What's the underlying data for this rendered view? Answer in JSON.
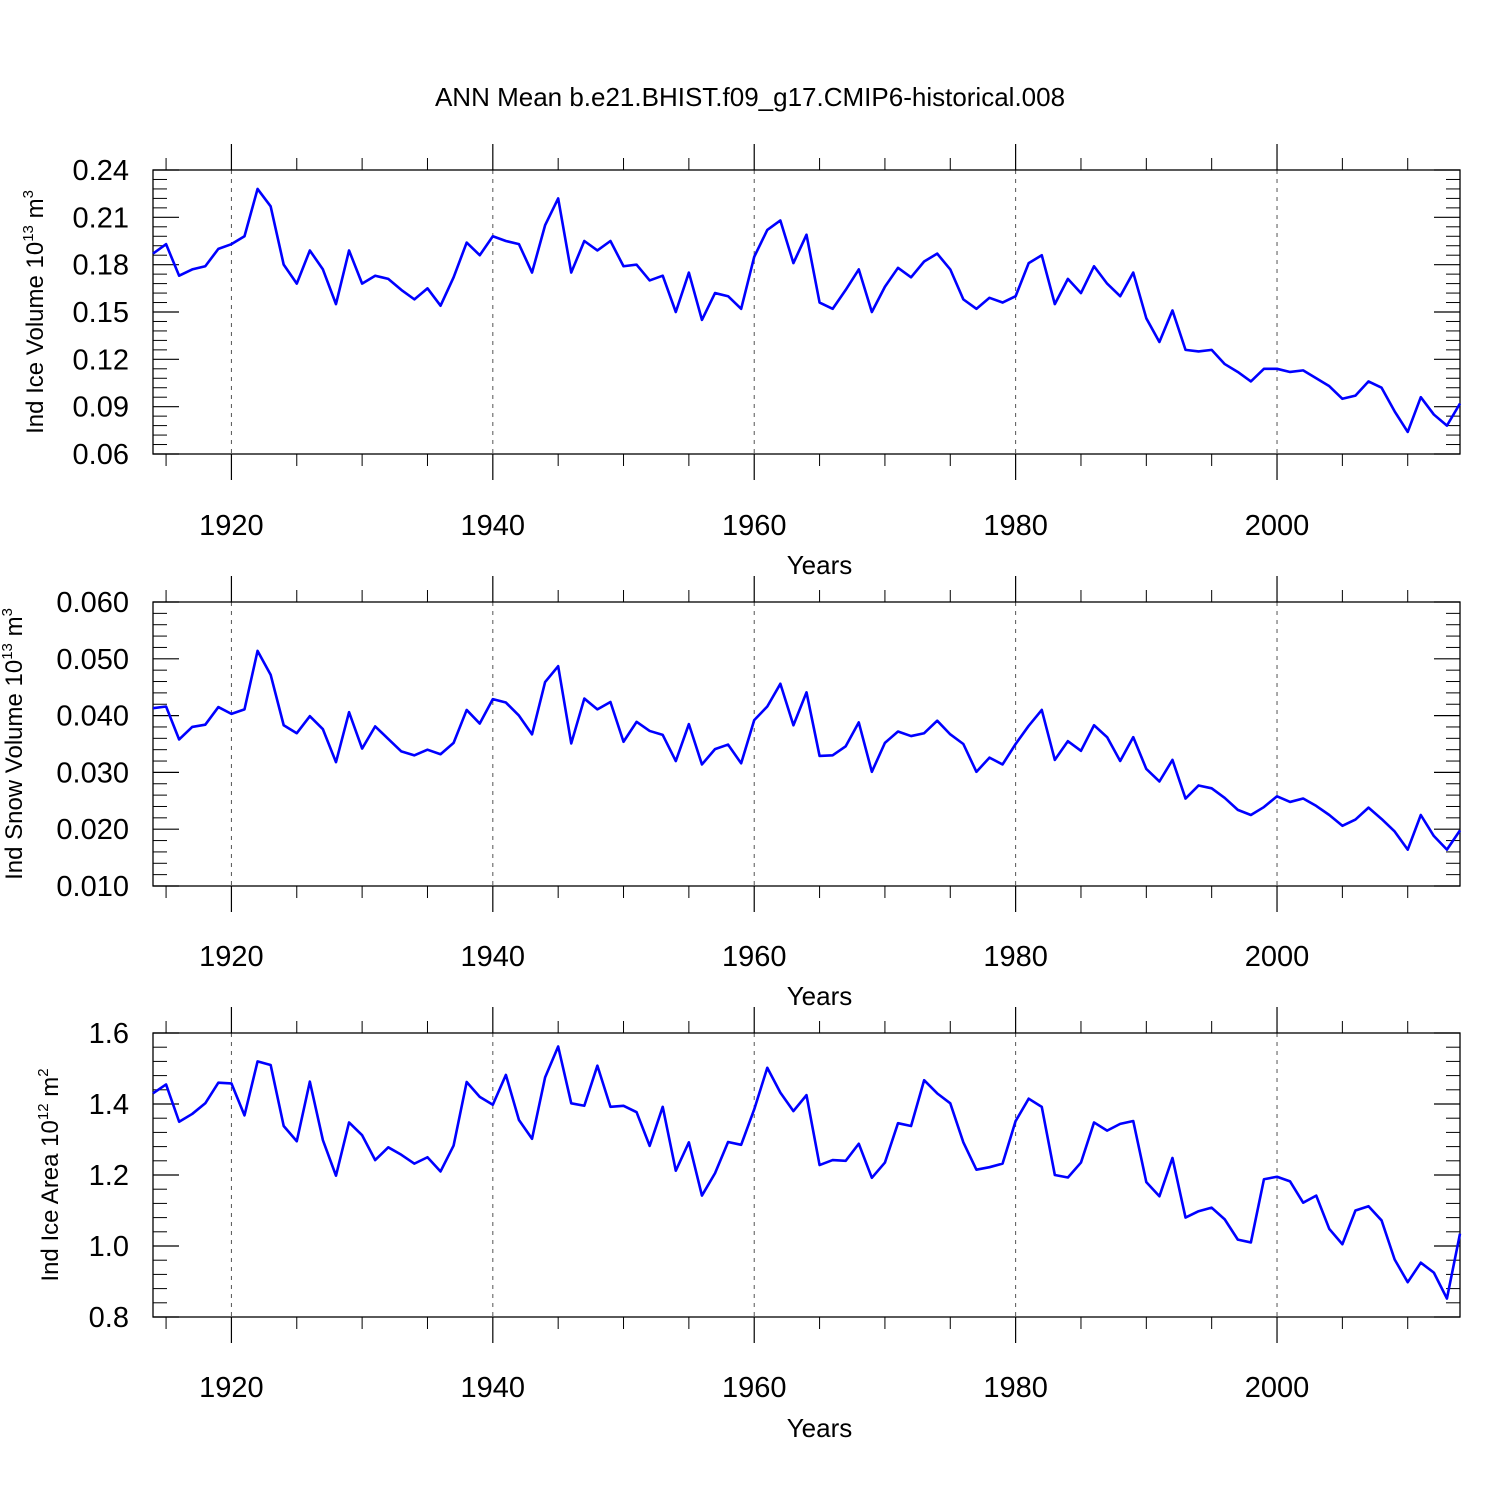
{
  "title": "ANN Mean b.e21.BHIST.f09_g17.CMIP6-historical.008",
  "line_color": "#0000ff",
  "chart_data": [
    {
      "type": "line",
      "id": "ice-volume",
      "ylabel": {
        "text": "Ind Ice Volume 10",
        "exponent": "13",
        "unit": " m",
        "unit_exponent": "3"
      },
      "xlabel": "Years",
      "xlim": [
        1914,
        2014
      ],
      "ylim": [
        0.06,
        0.24
      ],
      "yticks": [
        "0.24",
        "0.21",
        "0.18",
        "0.15",
        "0.12",
        "0.09",
        "0.06"
      ],
      "ytick_values": [
        0.24,
        0.21,
        0.18,
        0.15,
        0.12,
        0.09,
        0.06
      ],
      "xticks": [
        "1920",
        "1940",
        "1960",
        "1980",
        "2000"
      ],
      "xtick_values": [
        1920,
        1940,
        1960,
        1980,
        2000
      ],
      "grid": "vertical dashed at major x ticks",
      "x_start": 1914,
      "values": [
        0.187,
        0.193,
        0.173,
        0.177,
        0.179,
        0.19,
        0.193,
        0.198,
        0.228,
        0.217,
        0.18,
        0.168,
        0.189,
        0.177,
        0.155,
        0.189,
        0.168,
        0.173,
        0.171,
        0.164,
        0.158,
        0.165,
        0.154,
        0.172,
        0.194,
        0.186,
        0.198,
        0.195,
        0.193,
        0.175,
        0.205,
        0.222,
        0.175,
        0.195,
        0.189,
        0.195,
        0.179,
        0.18,
        0.17,
        0.173,
        0.15,
        0.175,
        0.145,
        0.162,
        0.16,
        0.152,
        0.185,
        0.202,
        0.208,
        0.181,
        0.199,
        0.156,
        0.152,
        0.164,
        0.177,
        0.15,
        0.166,
        0.178,
        0.172,
        0.182,
        0.187,
        0.177,
        0.158,
        0.152,
        0.159,
        0.156,
        0.16,
        0.181,
        0.186,
        0.155,
        0.171,
        0.162,
        0.179,
        0.168,
        0.16,
        0.175,
        0.146,
        0.131,
        0.151,
        0.126,
        0.125,
        0.126,
        0.117,
        0.112,
        0.106,
        0.114,
        0.114,
        0.112,
        0.113,
        0.108,
        0.103,
        0.095,
        0.097,
        0.106,
        0.102,
        0.087,
        0.074,
        0.096,
        0.085,
        0.078,
        0.092
      ]
    },
    {
      "type": "line",
      "id": "snow-volume",
      "ylabel": {
        "text": "Ind Snow Volume 10",
        "exponent": "13",
        "unit": " m",
        "unit_exponent": "3"
      },
      "xlabel": "Years",
      "xlim": [
        1914,
        2014
      ],
      "ylim": [
        0.01,
        0.06
      ],
      "yticks": [
        "0.060",
        "0.050",
        "0.040",
        "0.030",
        "0.020",
        "0.010"
      ],
      "ytick_values": [
        0.06,
        0.05,
        0.04,
        0.03,
        0.02,
        0.01
      ],
      "xticks": [
        "1920",
        "1940",
        "1960",
        "1980",
        "2000"
      ],
      "xtick_values": [
        1920,
        1940,
        1960,
        1980,
        2000
      ],
      "grid": "vertical dashed at major x ticks",
      "x_start": 1914,
      "values": [
        0.0413,
        0.0416,
        0.0358,
        0.038,
        0.0384,
        0.0415,
        0.0403,
        0.0411,
        0.0514,
        0.0472,
        0.0383,
        0.0369,
        0.0399,
        0.0376,
        0.0318,
        0.0406,
        0.0342,
        0.0381,
        0.0359,
        0.0337,
        0.033,
        0.034,
        0.0332,
        0.0352,
        0.041,
        0.0386,
        0.0429,
        0.0423,
        0.04,
        0.0367,
        0.0459,
        0.0487,
        0.0351,
        0.043,
        0.0411,
        0.0424,
        0.0354,
        0.0389,
        0.0373,
        0.0366,
        0.032,
        0.0385,
        0.0314,
        0.0341,
        0.0349,
        0.0316,
        0.0392,
        0.0416,
        0.0456,
        0.0383,
        0.0441,
        0.0329,
        0.033,
        0.0346,
        0.0388,
        0.0301,
        0.0352,
        0.0372,
        0.0364,
        0.0369,
        0.0391,
        0.0367,
        0.035,
        0.0301,
        0.0326,
        0.0314,
        0.035,
        0.0382,
        0.041,
        0.0322,
        0.0355,
        0.0338,
        0.0383,
        0.0362,
        0.032,
        0.0362,
        0.0306,
        0.0284,
        0.0322,
        0.0254,
        0.0277,
        0.0272,
        0.0255,
        0.0234,
        0.0225,
        0.0239,
        0.0258,
        0.0248,
        0.0254,
        0.0241,
        0.0225,
        0.0206,
        0.0217,
        0.0238,
        0.0218,
        0.0196,
        0.0164,
        0.0225,
        0.0188,
        0.0164,
        0.0198
      ]
    },
    {
      "type": "line",
      "id": "ice-area",
      "ylabel": {
        "text": "Ind Ice Area 10",
        "exponent": "12",
        "unit": " m",
        "unit_exponent": "2"
      },
      "xlabel": "Years",
      "xlim": [
        1914,
        2014
      ],
      "ylim": [
        0.8,
        1.6
      ],
      "yticks": [
        "1.6",
        "1.4",
        "1.2",
        "1.0",
        "0.8"
      ],
      "ytick_values": [
        1.6,
        1.4,
        1.2,
        1.0,
        0.8
      ],
      "xticks": [
        "1920",
        "1940",
        "1960",
        "1980",
        "2000"
      ],
      "xtick_values": [
        1920,
        1940,
        1960,
        1980,
        2000
      ],
      "grid": "vertical dashed at major x ticks",
      "x_start": 1914,
      "values": [
        1.43,
        1.455,
        1.35,
        1.372,
        1.402,
        1.46,
        1.458,
        1.368,
        1.52,
        1.51,
        1.338,
        1.295,
        1.463,
        1.298,
        1.198,
        1.348,
        1.312,
        1.242,
        1.278,
        1.257,
        1.232,
        1.25,
        1.21,
        1.283,
        1.462,
        1.42,
        1.398,
        1.482,
        1.355,
        1.302,
        1.475,
        1.562,
        1.402,
        1.395,
        1.508,
        1.392,
        1.395,
        1.377,
        1.282,
        1.392,
        1.212,
        1.292,
        1.142,
        1.205,
        1.293,
        1.285,
        1.385,
        1.502,
        1.432,
        1.38,
        1.425,
        1.228,
        1.242,
        1.24,
        1.288,
        1.192,
        1.235,
        1.346,
        1.338,
        1.467,
        1.43,
        1.402,
        1.292,
        1.215,
        1.222,
        1.232,
        1.352,
        1.415,
        1.392,
        1.2,
        1.193,
        1.235,
        1.348,
        1.325,
        1.344,
        1.352,
        1.18,
        1.14,
        1.248,
        1.08,
        1.098,
        1.108,
        1.075,
        1.018,
        1.01,
        1.188,
        1.195,
        1.182,
        1.122,
        1.142,
        1.048,
        1.005,
        1.1,
        1.112,
        1.072,
        0.962,
        0.898,
        0.953,
        0.925,
        0.852,
        1.035
      ]
    }
  ]
}
